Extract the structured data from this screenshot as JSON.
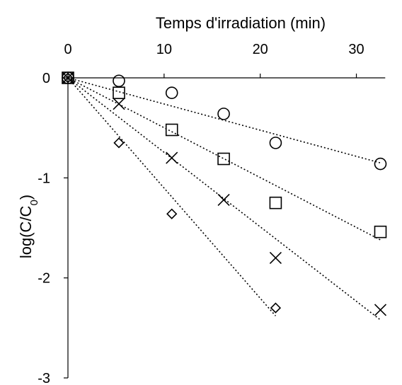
{
  "chart_data": {
    "type": "scatter",
    "title": "",
    "xlabel": "Temps d'irradiation (min)",
    "ylabel_main": "log(C/C",
    "ylabel_sub": "0",
    "ylabel_close": ")",
    "xlim": [
      0,
      33
    ],
    "ylim": [
      -3,
      0
    ],
    "x_ticks": [
      0,
      10,
      20,
      30
    ],
    "y_ticks": [
      0,
      -1,
      -2,
      -3
    ],
    "x_axis_position": "top",
    "grid": false,
    "legend": "none",
    "series": [
      {
        "marker": "circle",
        "points": [
          [
            0,
            0
          ],
          [
            5.3,
            -0.03
          ],
          [
            10.8,
            -0.15
          ],
          [
            16.2,
            -0.36
          ],
          [
            21.6,
            -0.65
          ],
          [
            32.5,
            -0.86
          ]
        ],
        "trend": [
          [
            0,
            0
          ],
          [
            32.5,
            -0.85
          ]
        ]
      },
      {
        "marker": "square",
        "points": [
          [
            0,
            0
          ],
          [
            5.3,
            -0.15
          ],
          [
            10.8,
            -0.52
          ],
          [
            16.2,
            -0.81
          ],
          [
            21.6,
            -1.25
          ],
          [
            32.5,
            -1.54
          ]
        ],
        "trend": [
          [
            0,
            0
          ],
          [
            32.5,
            -1.62
          ]
        ]
      },
      {
        "marker": "cross",
        "points": [
          [
            0,
            0
          ],
          [
            5.3,
            -0.26
          ],
          [
            10.8,
            -0.8
          ],
          [
            16.2,
            -1.22
          ],
          [
            21.6,
            -1.8
          ],
          [
            32.5,
            -2.32
          ]
        ],
        "trend": [
          [
            0,
            0
          ],
          [
            32.5,
            -2.42
          ]
        ]
      },
      {
        "marker": "diamond",
        "points": [
          [
            0,
            0
          ],
          [
            5.3,
            -0.65
          ],
          [
            10.8,
            -1.36
          ],
          [
            21.6,
            -2.3
          ]
        ],
        "trend": [
          [
            0,
            0
          ],
          [
            21.6,
            -2.38
          ]
        ]
      }
    ]
  }
}
